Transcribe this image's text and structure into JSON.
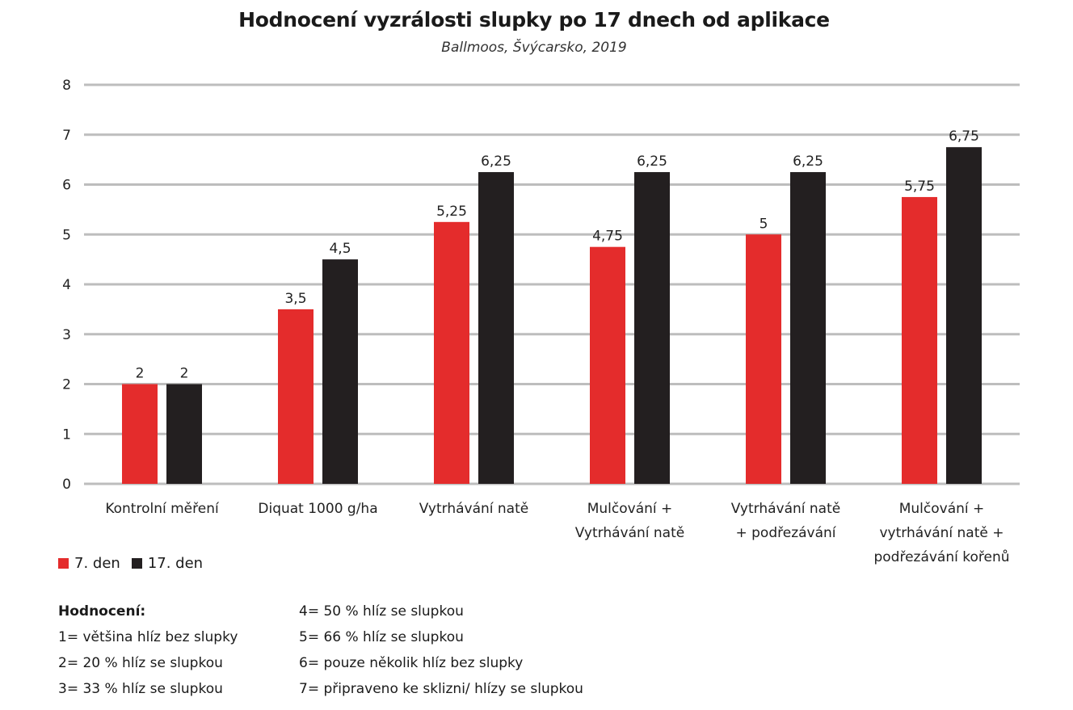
{
  "chart_data": {
    "type": "bar",
    "title": "Hodnocení vyzrálosti slupky po 17 dnech od aplikace",
    "subtitle": "Ballmoos, Švýcarsko, 2019",
    "categories": [
      [
        "Kontrolní měření"
      ],
      [
        "Diquat 1000 g/ha"
      ],
      [
        "Vytrhávání natě"
      ],
      [
        "Mulčování +",
        "Vytrhávání natě"
      ],
      [
        "Vytrhávání natě",
        "+ podřezávání"
      ],
      [
        "Mulčování +",
        "vytrhávání natě +",
        "podřezávání kořenů"
      ]
    ],
    "series": [
      {
        "name": "7. den",
        "color": "#e42c2c",
        "values": [
          2,
          3.5,
          5.25,
          4.75,
          5,
          5.75
        ],
        "labels": [
          "2",
          "3,5",
          "5,25",
          "4,75",
          "5",
          "5,75"
        ]
      },
      {
        "name": "17. den",
        "color": "#231f20",
        "values": [
          2,
          4.5,
          6.25,
          6.25,
          6.25,
          6.75
        ],
        "labels": [
          "2",
          "4,5",
          "6,25",
          "6,25",
          "6,25",
          "6,75"
        ]
      }
    ],
    "ylim": [
      0,
      8
    ],
    "yticks": [
      0,
      1,
      2,
      3,
      4,
      5,
      6,
      7,
      8
    ],
    "grid": true,
    "legend_position": "bottom-left"
  },
  "notes": {
    "heading": "Hodnocení:",
    "col1": [
      "1= většina hlíz bez slupky",
      "2= 20 % hlíz se slupkou",
      "3= 33 % hlíz se slupkou"
    ],
    "col2": [
      "4= 50 % hlíz se slupkou",
      "5= 66 % hlíz se slupkou",
      "6= pouze několik hlíz bez slupky",
      "7= připraveno ke sklizni/ hlízy se slupkou"
    ]
  }
}
